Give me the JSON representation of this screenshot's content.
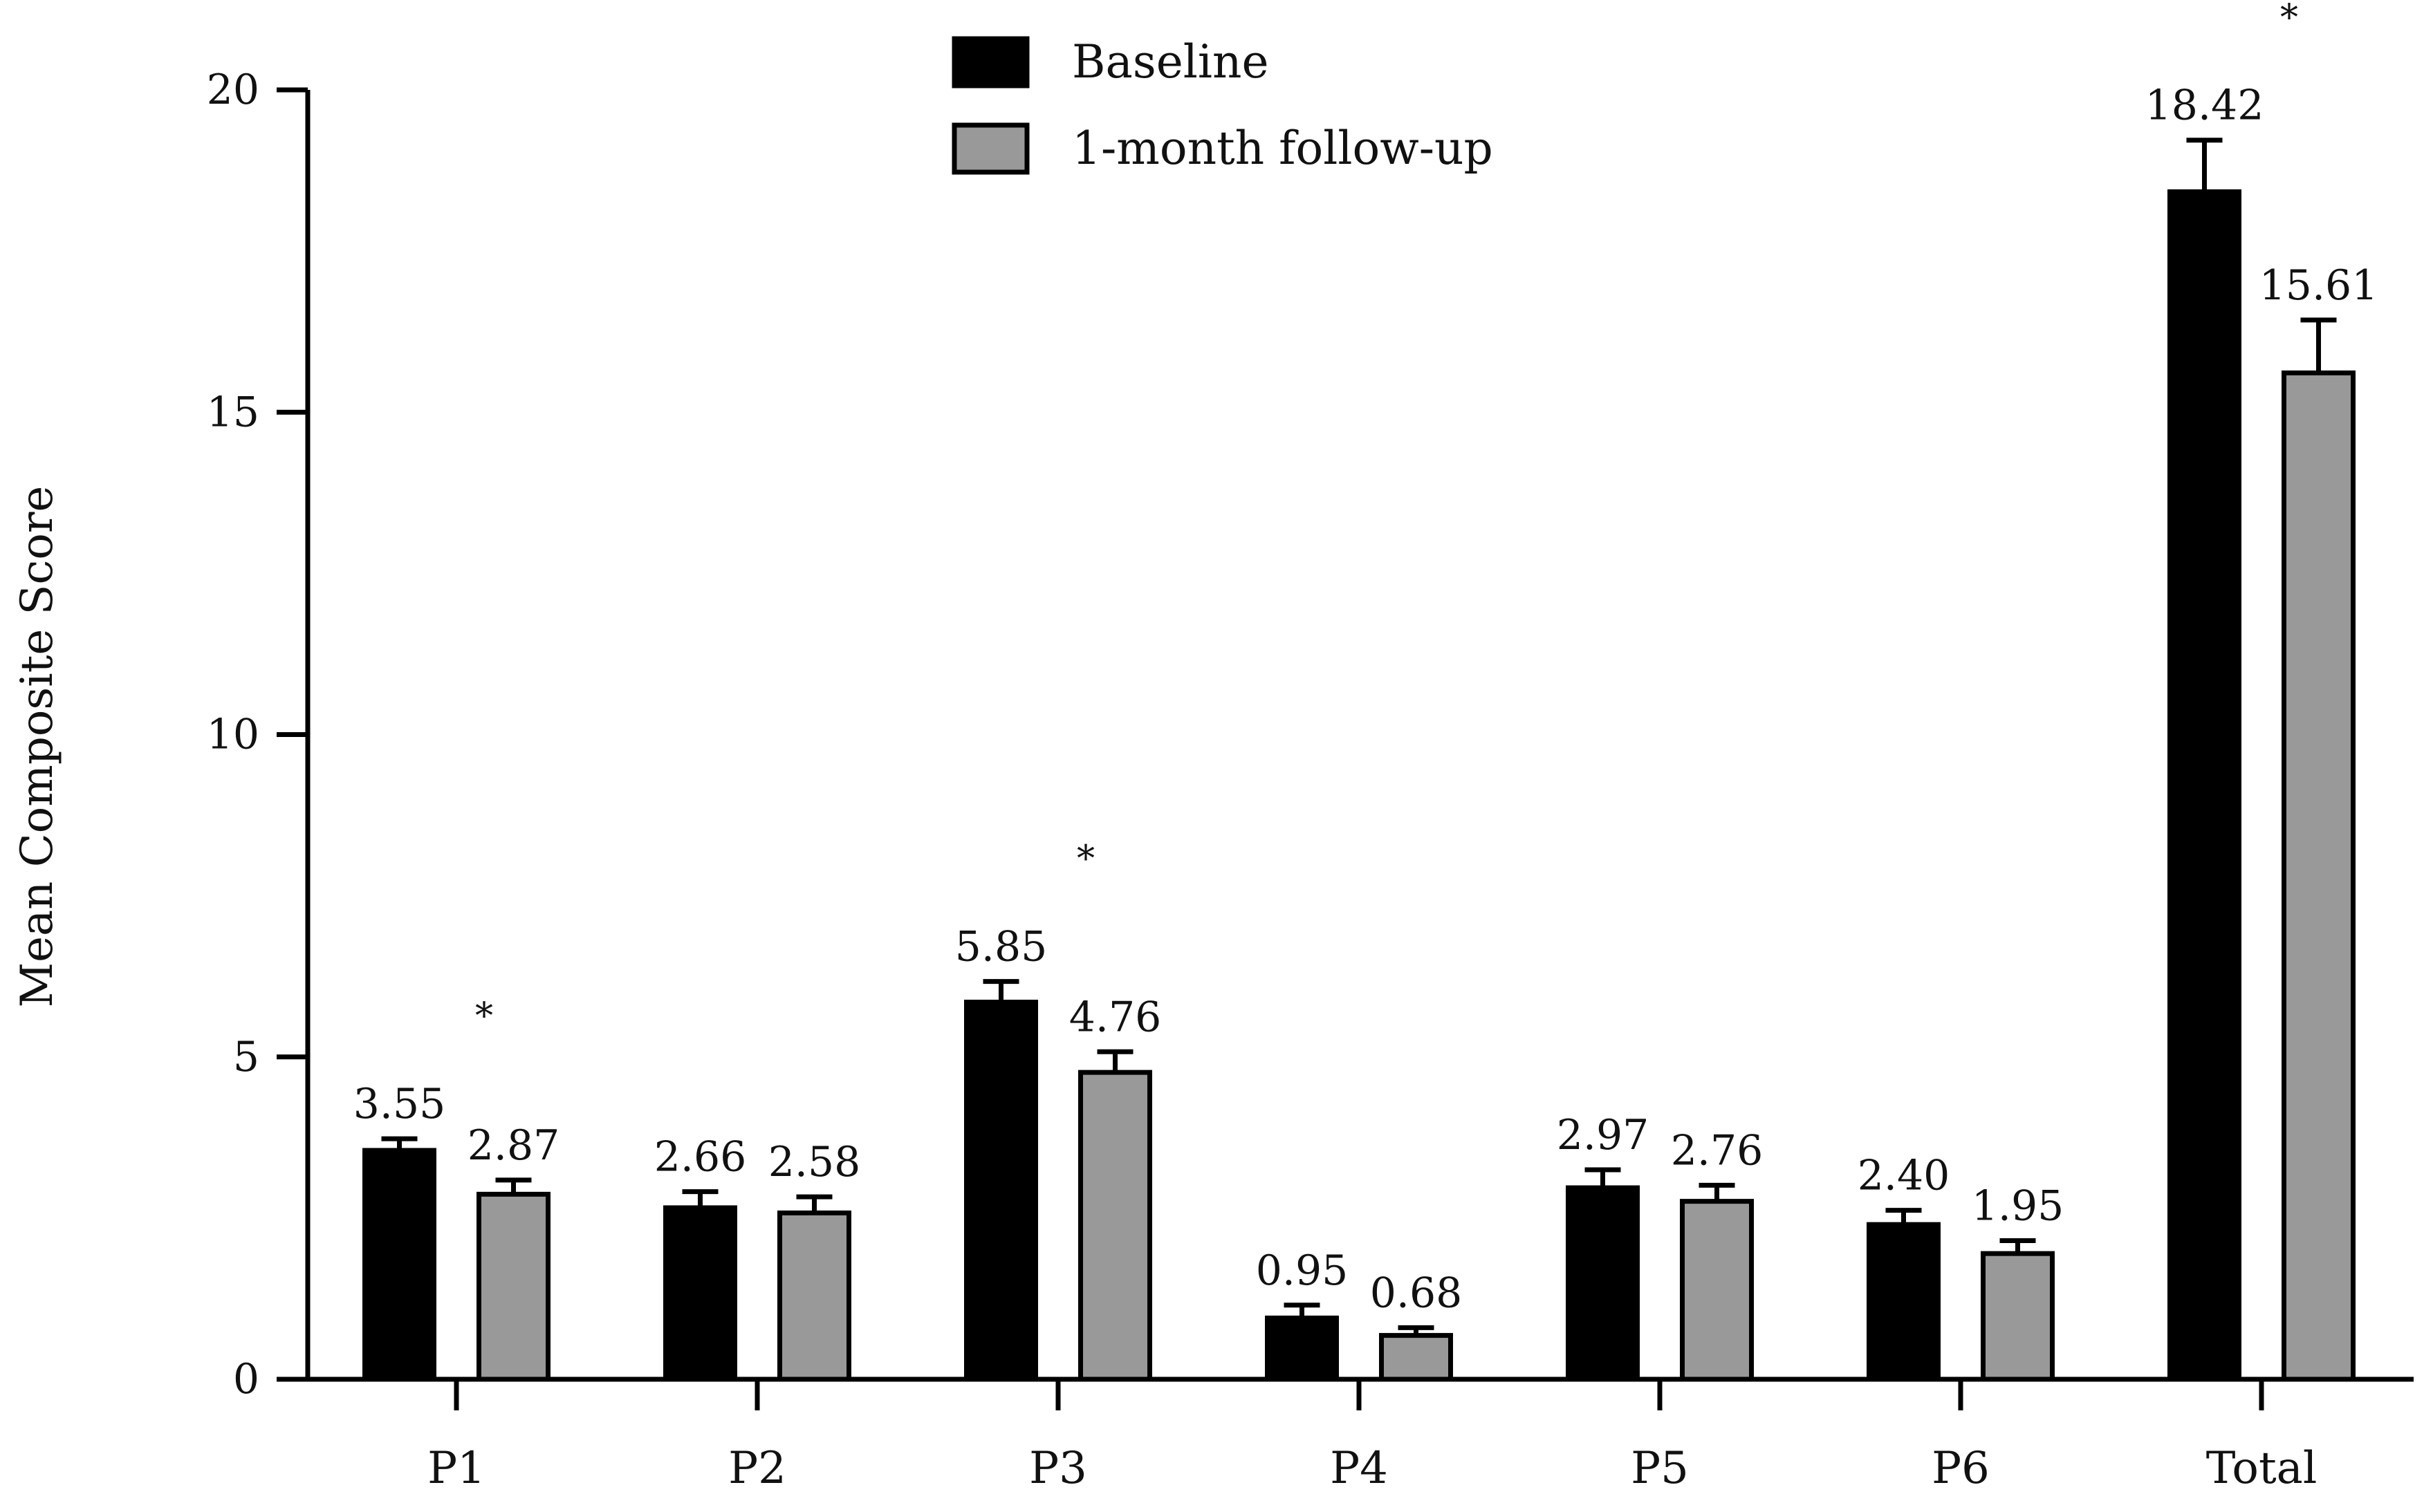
{
  "chart_data": {
    "type": "bar",
    "title": "",
    "xlabel": "",
    "ylabel": "Mean Composite Score",
    "ylim": [
      0,
      20
    ],
    "yticks": [
      0,
      5,
      10,
      15,
      20
    ],
    "categories": [
      "P1",
      "P2",
      "P3",
      "P4",
      "P5",
      "P6",
      "Total"
    ],
    "series": [
      {
        "name": "Baseline",
        "color": "#000000",
        "values": [
          3.55,
          2.66,
          5.85,
          0.95,
          2.97,
          2.4,
          18.42
        ],
        "labels": [
          "3.55",
          "2.66",
          "5.85",
          "0.95",
          "2.97",
          "2.40",
          "18.42"
        ],
        "errors": [
          0.18,
          0.25,
          0.32,
          0.2,
          0.28,
          0.22,
          0.8
        ]
      },
      {
        "name": "1-month follow-up",
        "color": "#999999",
        "values": [
          2.87,
          2.58,
          4.76,
          0.68,
          2.76,
          1.95,
          15.61
        ],
        "labels": [
          "2.87",
          "2.58",
          "4.76",
          "0.68",
          "2.76",
          "1.95",
          "15.61"
        ],
        "errors": [
          0.22,
          0.25,
          0.32,
          0.12,
          0.25,
          0.2,
          0.82
        ]
      }
    ],
    "significance": [
      {
        "category": "P1",
        "mark": "*"
      },
      {
        "category": "P3",
        "mark": "*"
      },
      {
        "category": "Total",
        "mark": "*"
      }
    ],
    "legend": {
      "position": "top-center",
      "entries": [
        "Baseline",
        "1-month follow-up"
      ]
    },
    "grid": false
  }
}
